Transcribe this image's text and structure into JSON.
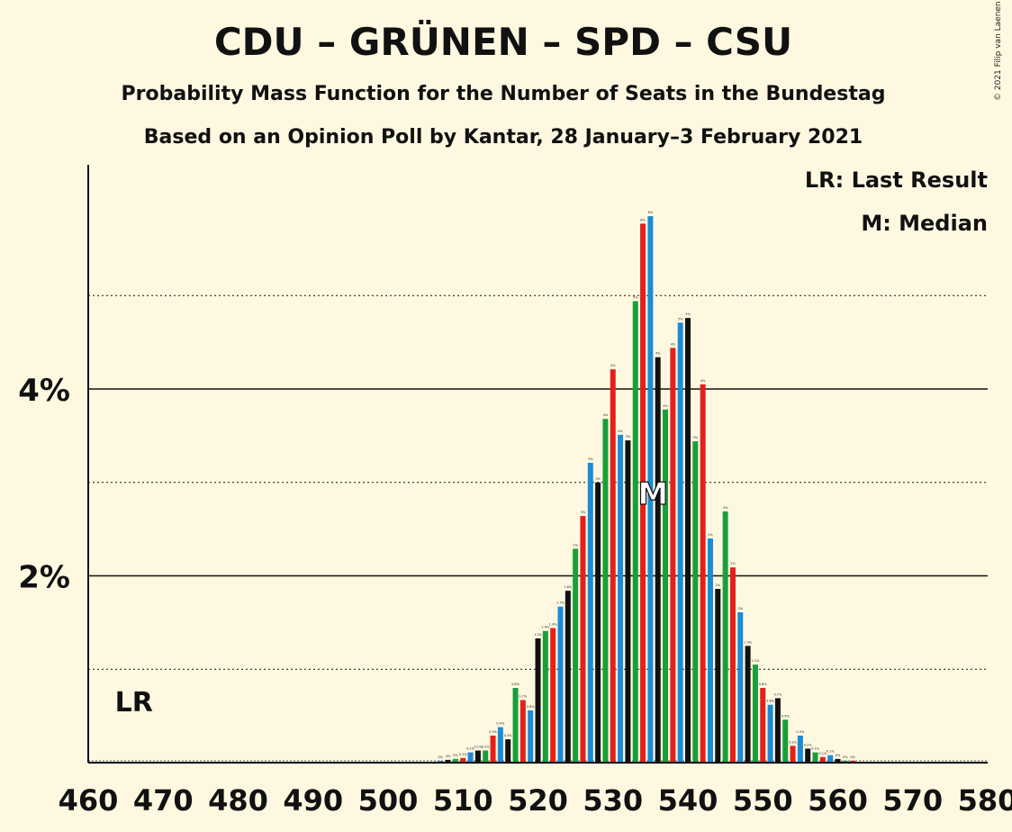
{
  "title": "CDU – GRÜNEN – SPD – CSU",
  "subtitle": "Probability Mass Function for the Number of Seats in the Bundestag",
  "subtitle2": "Based on an Opinion Poll by Kantar, 28 January–3 February 2021",
  "copyright": "© 2021 Filip van Laenen",
  "legend": {
    "lr": "LR: Last Result",
    "median": "M: Median"
  },
  "colors": {
    "background": "#fff8e1",
    "palette": [
      "#1a9e3a",
      "#e3201b",
      "#1b8bd6",
      "#111111"
    ]
  },
  "chart_data": {
    "type": "bar",
    "xlabel": "",
    "ylabel": "",
    "xlim": [
      460,
      580
    ],
    "ylim": [
      0,
      6.4
    ],
    "x_ticks": [
      460,
      470,
      480,
      490,
      500,
      510,
      520,
      530,
      540,
      550,
      560,
      570,
      580
    ],
    "y_ticks": [
      {
        "value": 2,
        "label": "2%"
      },
      {
        "value": 4,
        "label": "4%"
      }
    ],
    "minor_gridlines": [
      1,
      3,
      5
    ],
    "last_result": {
      "seats": 465,
      "label": "LR"
    },
    "median": {
      "seats": 535,
      "label": "M"
    },
    "x": [
      507,
      508,
      509,
      510,
      511,
      512,
      513,
      514,
      515,
      516,
      517,
      518,
      519,
      520,
      521,
      522,
      523,
      524,
      525,
      526,
      527,
      528,
      529,
      530,
      531,
      532,
      533,
      534,
      535,
      536,
      537,
      538,
      539,
      540,
      541,
      542,
      543,
      544,
      545,
      546,
      547,
      548,
      549,
      550,
      551,
      552,
      553,
      554,
      555,
      556,
      557,
      558,
      559,
      560,
      561,
      562
    ],
    "values": [
      0.02,
      0.03,
      0.04,
      0.05,
      0.11,
      0.13,
      0.13,
      0.29,
      0.38,
      0.25,
      0.8,
      0.67,
      0.56,
      1.33,
      1.41,
      1.44,
      1.67,
      1.84,
      2.29,
      2.64,
      3.21,
      3.0,
      3.68,
      4.21,
      3.51,
      3.45,
      4.94,
      5.77,
      5.85,
      4.34,
      3.78,
      4.44,
      4.71,
      4.76,
      3.44,
      4.05,
      2.4,
      1.86,
      2.69,
      2.09,
      1.61,
      1.25,
      1.05,
      0.8,
      0.62,
      0.69,
      0.46,
      0.18,
      0.29,
      0.15,
      0.11,
      0.06,
      0.08,
      0.04,
      0.02,
      0.02
    ],
    "bar_labels": [
      "0%",
      "0%",
      "0%",
      "0.1%",
      "0.1%",
      "0.1%",
      "0.1%",
      "0.3%",
      "0.4%",
      "0.3%",
      "0.8%",
      "0.7%",
      "0.6%",
      "1.3%",
      "1.4%",
      "1.4%",
      "1.7%",
      "1.8%",
      "2%",
      "3%",
      "3%",
      "3%",
      "4%",
      "4%",
      "4%",
      "3%",
      "5%",
      "6%",
      "6%",
      "4%",
      "4%",
      "4%",
      "5%",
      "5%",
      "3%",
      "4%",
      "2%",
      "2%",
      "3%",
      "2%",
      "2%",
      "1.3%",
      "1.1%",
      "0.8%",
      "0.6%",
      "0.7%",
      "0.5%",
      "0.2%",
      "0.3%",
      "0.2%",
      "0.1%",
      "0.1%",
      "0.1%",
      "0%",
      "0%",
      "0%"
    ]
  }
}
